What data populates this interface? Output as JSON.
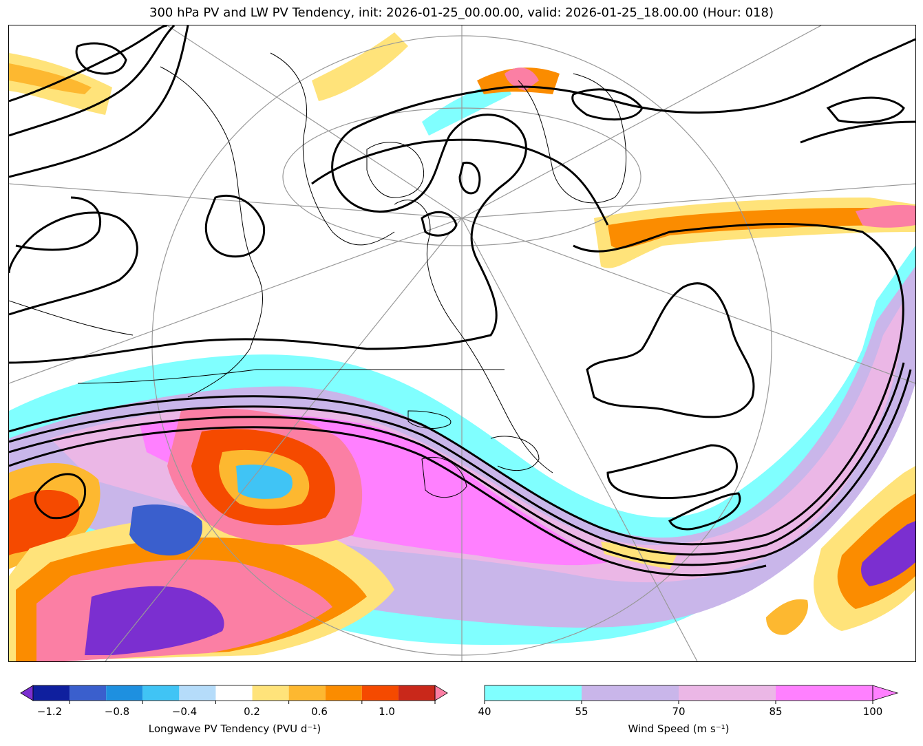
{
  "title": "300 hPa PV and LW PV Tendency, init: 2026-01-25_00.00.00, valid: 2026-01-25_18.00.00 (Hour: 018)",
  "colorbars": {
    "pv_tendency": {
      "label": "Longwave PV Tendency (PVU d⁻¹)",
      "ticks": [
        "−1.2",
        "−0.8",
        "−0.4",
        "0.2",
        "0.6",
        "1.0"
      ],
      "colors": [
        "#7b2fd0",
        "#0f1f9e",
        "#3a5fcd",
        "#1e90e0",
        "#40c4f5",
        "#b5dcfa",
        "#ffffff",
        "#ffe37a",
        "#fdb830",
        "#fb8c00",
        "#f54a00",
        "#c9281a",
        "#fb7fa4"
      ]
    },
    "wind_speed": {
      "label": "Wind Speed (m s⁻¹)",
      "ticks": [
        "40",
        "55",
        "70",
        "85",
        "100"
      ],
      "colors": [
        "#80ffff",
        "#c9b6ea",
        "#ebb7e6",
        "#ff80ff"
      ]
    }
  },
  "map": {
    "wind_colors": {
      "w40": "#80ffff",
      "w55": "#c9b6ea",
      "w70": "#ebb7e6",
      "w85": "#ff80ff"
    },
    "pv_colors": {
      "p02": "#ffe37a",
      "p04": "#fdb830",
      "p06": "#fb8c00",
      "p08": "#f54a00",
      "p10": "#c9281a",
      "p12": "#fb7fa4",
      "n04": "#40c4f5",
      "n08": "#3a5fcd",
      "n12": "#7b2fd0"
    }
  }
}
